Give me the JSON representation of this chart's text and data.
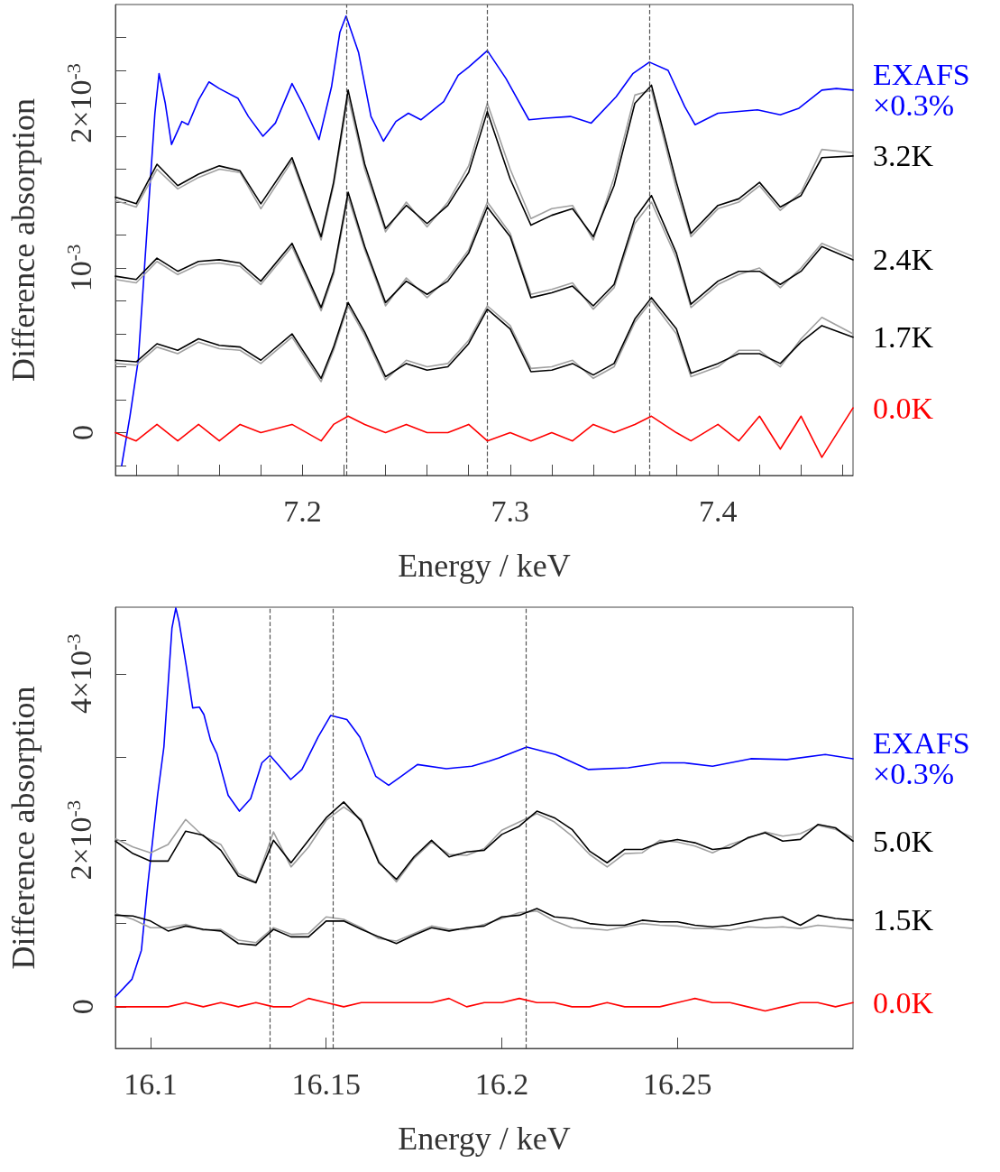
{
  "chart_data": [
    {
      "type": "line",
      "xlabel": "Energy / keV",
      "ylabel": "Difference absorption",
      "grid": false,
      "legend": false,
      "marker": "none",
      "line_style": "solid",
      "xlim": [
        7.11,
        7.465
      ],
      "ylim": [
        -0.00026,
        0.0026
      ],
      "xticks": [
        {
          "value": 7.12,
          "label": null
        },
        {
          "value": 7.14,
          "label": null
        },
        {
          "value": 7.16,
          "label": null
        },
        {
          "value": 7.18,
          "label": null
        },
        7.2,
        {
          "value": 7.22,
          "label": null
        },
        {
          "value": 7.24,
          "label": null
        },
        {
          "value": 7.26,
          "label": null
        },
        {
          "value": 7.28,
          "label": null
        },
        7.3,
        {
          "value": 7.32,
          "label": null
        },
        {
          "value": 7.34,
          "label": null
        },
        {
          "value": 7.36,
          "label": null
        },
        {
          "value": 7.38,
          "label": null
        },
        7.4,
        {
          "value": 7.42,
          "label": null
        },
        {
          "value": 7.44,
          "label": null
        },
        {
          "value": 7.46,
          "label": null
        }
      ],
      "yticks": [
        {
          "value": -0.0002,
          "label": null
        },
        0,
        {
          "value": 0.0002,
          "label": null
        },
        {
          "value": 0.0004,
          "label": null
        },
        {
          "value": 0.0006,
          "label": null
        },
        {
          "value": 0.0008,
          "label": null
        },
        {
          "value": 0.001,
          "label": "10$^{-3}$"
        },
        {
          "value": 0.0012,
          "label": null
        },
        {
          "value": 0.0014,
          "label": null
        },
        {
          "value": 0.0016,
          "label": null
        },
        {
          "value": 0.0018,
          "label": null
        },
        {
          "value": 0.002,
          "label": "2×10$^{-3}$"
        },
        {
          "value": 0.0022,
          "label": null
        },
        {
          "value": 0.0024,
          "label": null
        }
      ],
      "ref_lines": [
        {
          "axis": "x",
          "value": 7.221,
          "color": "#555555",
          "line_style": "dashed"
        },
        {
          "axis": "x",
          "value": 7.289,
          "color": "#555555",
          "line_style": "dashed"
        },
        {
          "axis": "x",
          "value": 7.367,
          "color": "#555555",
          "line_style": "dashed"
        }
      ],
      "x": [
        7.11,
        7.12,
        7.13,
        7.14,
        7.15,
        7.16,
        7.17,
        7.18,
        7.195,
        7.209,
        7.215,
        7.222,
        7.23,
        7.24,
        7.25,
        7.26,
        7.27,
        7.28,
        7.289,
        7.3,
        7.31,
        7.32,
        7.33,
        7.34,
        7.35,
        7.36,
        7.368,
        7.38,
        7.387,
        7.4,
        7.41,
        7.42,
        7.43,
        7.44,
        7.45,
        7.465
      ],
      "series": [
        {
          "name": "EXAFS ×0.3%",
          "color": "#0000ff",
          "x": [
            7.113,
            7.117,
            7.121,
            7.126,
            7.129,
            7.131,
            7.134,
            7.137,
            7.142,
            7.145,
            7.15,
            7.155,
            7.16,
            7.169,
            7.174,
            7.181,
            7.187,
            7.195,
            7.2,
            7.208,
            7.214,
            7.218,
            7.221,
            7.227,
            7.233,
            7.239,
            7.245,
            7.251,
            7.257,
            7.268,
            7.275,
            7.28,
            7.289,
            7.298,
            7.309,
            7.317,
            7.329,
            7.339,
            7.351,
            7.359,
            7.367,
            7.376,
            7.384,
            7.389,
            7.4,
            7.419,
            7.43,
            7.439,
            7.45,
            7.457,
            7.465
          ],
          "values": [
            -0.0002,
            0.0001,
            0.00044,
            0.00138,
            0.00194,
            0.00218,
            0.002,
            0.00175,
            0.00189,
            0.00187,
            0.00202,
            0.00213,
            0.00209,
            0.00203,
            0.00192,
            0.0018,
            0.00188,
            0.00212,
            0.002,
            0.00178,
            0.0021,
            0.00243,
            0.00253,
            0.00231,
            0.00192,
            0.00177,
            0.00189,
            0.00194,
            0.0019,
            0.00201,
            0.00217,
            0.00222,
            0.00232,
            0.00215,
            0.0019,
            0.00191,
            0.00192,
            0.00188,
            0.00204,
            0.00218,
            0.00225,
            0.0022,
            0.00198,
            0.00187,
            0.00194,
            0.00196,
            0.00193,
            0.00197,
            0.00208,
            0.00209,
            0.00208
          ]
        },
        {
          "color": "#a0a0a0",
          "values": [
            0.00141,
            0.00137,
            0.0016,
            0.00148,
            0.00155,
            0.0016,
            0.00158,
            0.00136,
            0.00165,
            0.00117,
            0.0015,
            0.00204,
            0.0016,
            0.00122,
            0.0014,
            0.00125,
            0.0014,
            0.00162,
            0.002,
            0.0016,
            0.0013,
            0.00136,
            0.00138,
            0.00117,
            0.00155,
            0.00205,
            0.00208,
            0.00148,
            0.00119,
            0.00136,
            0.0014,
            0.0015,
            0.00135,
            0.00146,
            0.00172,
            0.0017
          ]
        },
        {
          "color": "#a0a0a0",
          "values": [
            0.00093,
            0.00091,
            0.00104,
            0.00096,
            0.00102,
            0.00103,
            0.00101,
            0.0009,
            0.00113,
            0.00074,
            0.00096,
            0.00143,
            0.00111,
            0.00077,
            0.00094,
            0.00082,
            0.00094,
            0.00111,
            0.0014,
            0.00121,
            0.00084,
            0.00087,
            0.00091,
            0.00075,
            0.00088,
            0.00127,
            0.0014,
            0.00106,
            0.00076,
            0.0009,
            0.00096,
            0.001,
            0.00088,
            0.001,
            0.00115,
            0.00107
          ]
        },
        {
          "color": "#a0a0a0",
          "values": [
            0.00042,
            0.00041,
            0.00052,
            0.00048,
            0.00055,
            0.00051,
            0.0005,
            0.00042,
            0.00058,
            0.00031,
            0.0005,
            0.00077,
            0.00059,
            0.00032,
            0.00044,
            0.0004,
            0.00042,
            0.00056,
            0.00077,
            0.00065,
            0.00039,
            0.0004,
            0.00044,
            0.00033,
            0.0004,
            0.00067,
            0.0008,
            0.0006,
            0.00034,
            0.0004,
            0.0005,
            0.0005,
            0.0004,
            0.00057,
            0.0007,
            0.0006
          ]
        },
        {
          "name": "3.2K",
          "color": "#000000",
          "values": [
            0.00143,
            0.00139,
            0.00163,
            0.0015,
            0.00157,
            0.00162,
            0.00159,
            0.00139,
            0.00167,
            0.00119,
            0.00152,
            0.00208,
            0.00163,
            0.00124,
            0.00138,
            0.00127,
            0.00138,
            0.00158,
            0.00195,
            0.00154,
            0.00126,
            0.00132,
            0.00136,
            0.00119,
            0.0015,
            0.002,
            0.00211,
            0.00152,
            0.00121,
            0.00138,
            0.00142,
            0.00152,
            0.00137,
            0.00144,
            0.00167,
            0.00168
          ]
        },
        {
          "name": "2.4K",
          "color": "#000000",
          "values": [
            0.00095,
            0.00093,
            0.00106,
            0.00098,
            0.00104,
            0.00105,
            0.00103,
            0.00092,
            0.00115,
            0.00076,
            0.00098,
            0.00146,
            0.00113,
            0.00079,
            0.00092,
            0.00084,
            0.00092,
            0.00109,
            0.00137,
            0.00119,
            0.00082,
            0.00085,
            0.00089,
            0.00077,
            0.0009,
            0.0013,
            0.00144,
            0.00109,
            0.00078,
            0.00092,
            0.00098,
            0.00098,
            0.0009,
            0.00098,
            0.00113,
            0.00105
          ]
        },
        {
          "name": "1.7K",
          "color": "#000000",
          "values": [
            0.00044,
            0.00043,
            0.00054,
            0.0005,
            0.00057,
            0.00053,
            0.00052,
            0.00044,
            0.0006,
            0.00033,
            0.00052,
            0.00079,
            0.00061,
            0.00034,
            0.00042,
            0.00038,
            0.0004,
            0.00054,
            0.00075,
            0.00063,
            0.00037,
            0.00038,
            0.00042,
            0.00035,
            0.00042,
            0.00069,
            0.00082,
            0.00063,
            0.00036,
            0.00042,
            0.00048,
            0.00048,
            0.00042,
            0.00055,
            0.00065,
            0.00058
          ]
        },
        {
          "name": "0.0K",
          "color": "#ff0000",
          "values": [
            0,
            -5e-05,
            5e-05,
            -5e-05,
            5e-05,
            -5e-05,
            5e-05,
            0,
            5e-05,
            -5e-05,
            5e-05,
            0.0001,
            5e-05,
            0,
            5e-05,
            0,
            0,
            5e-05,
            -5e-05,
            0,
            -5e-05,
            0,
            -5e-05,
            5e-05,
            0,
            5e-05,
            0.0001,
            0,
            -5e-05,
            5e-05,
            -5e-05,
            0.0001,
            -0.0001,
            0.0001,
            -0.00015,
            0.00015
          ]
        }
      ]
    },
    {
      "type": "line",
      "xlabel": "Energy / keV",
      "ylabel": "Difference absorption",
      "grid": false,
      "legend": false,
      "marker": "none",
      "line_style": "solid",
      "xlim": [
        16.09,
        16.3
      ],
      "ylim": [
        -0.0005,
        0.0048
      ],
      "xticks": [
        16.1,
        16.15,
        16.2,
        16.25
      ],
      "yticks": [
        0,
        {
          "value": 0.001,
          "label": null
        },
        {
          "value": 0.002,
          "label": "2×10$^{-3}$"
        },
        {
          "value": 0.003,
          "label": null
        },
        {
          "value": 0.004,
          "label": "4×10$^{-3}$"
        }
      ],
      "ref_lines": [
        {
          "axis": "x",
          "value": 16.134,
          "color": "#555555",
          "line_style": "dashed"
        },
        {
          "axis": "x",
          "value": 16.152,
          "color": "#555555",
          "line_style": "dashed"
        },
        {
          "axis": "x",
          "value": 16.207,
          "color": "#555555",
          "line_style": "dashed"
        }
      ],
      "x": [
        16.09,
        16.095,
        16.1,
        16.105,
        16.11,
        16.115,
        16.12,
        16.125,
        16.13,
        16.135,
        16.14,
        16.145,
        16.15,
        16.155,
        16.16,
        16.165,
        16.17,
        16.175,
        16.18,
        16.185,
        16.19,
        16.195,
        16.2,
        16.205,
        16.21,
        16.215,
        16.22,
        16.225,
        16.23,
        16.235,
        16.24,
        16.245,
        16.25,
        16.255,
        16.26,
        16.265,
        16.27,
        16.275,
        16.28,
        16.285,
        16.29,
        16.295,
        16.3
      ],
      "series": [
        {
          "name": "EXAFS ×0.3%",
          "color": "#0000ff",
          "x": [
            16.09,
            16.0947,
            16.0974,
            16.0992,
            16.102,
            16.1038,
            16.1061,
            16.1072,
            16.1081,
            16.1102,
            16.112,
            16.1139,
            16.1152,
            16.1171,
            16.1189,
            16.1221,
            16.1253,
            16.1285,
            16.1317,
            16.134,
            16.1367,
            16.1399,
            16.1431,
            16.1477,
            16.1513,
            16.1559,
            16.1596,
            16.1641,
            16.1678,
            16.1714,
            16.176,
            16.1842,
            16.1915,
            16.1963,
            16.1992,
            16.2071,
            16.2153,
            16.2247,
            16.236,
            16.2455,
            16.252,
            16.26,
            16.2709,
            16.2812,
            16.2921,
            16.3
          ],
          "values": [
            0.00012,
            0.00033,
            0.00068,
            0.00146,
            0.00254,
            0.00312,
            0.00455,
            0.00479,
            0.00463,
            0.00409,
            0.00359,
            0.0036,
            0.00351,
            0.0032,
            0.00304,
            0.00254,
            0.00235,
            0.0025,
            0.00293,
            0.00302,
            0.00289,
            0.00273,
            0.00285,
            0.00324,
            0.0035,
            0.00345,
            0.00324,
            0.00277,
            0.00266,
            0.00277,
            0.00291,
            0.00286,
            0.00289,
            0.00295,
            0.00299,
            0.00312,
            0.00303,
            0.00285,
            0.00287,
            0.00293,
            0.00293,
            0.00289,
            0.00298,
            0.00297,
            0.00303,
            0.00298
          ]
        },
        {
          "color": "#a0a0a0",
          "values": [
            0.00202,
            0.00192,
            0.00185,
            0.00195,
            0.00225,
            0.00205,
            0.00195,
            0.0016,
            0.0015,
            0.0021,
            0.00168,
            0.00192,
            0.00224,
            0.0024,
            0.00225,
            0.00175,
            0.0015,
            0.00178,
            0.00198,
            0.00183,
            0.00182,
            0.0019,
            0.00212,
            0.00222,
            0.00232,
            0.00222,
            0.00205,
            0.00183,
            0.00168,
            0.00184,
            0.00185,
            0.002,
            0.00198,
            0.00193,
            0.00185,
            0.00195,
            0.00202,
            0.0021,
            0.00205,
            0.00208,
            0.00218,
            0.00213,
            0.00203
          ]
        },
        {
          "color": "#a0a0a0",
          "values": [
            0.00112,
            0.00105,
            0.00095,
            0.00095,
            0.00099,
            0.00092,
            0.00093,
            0.0008,
            0.00077,
            0.00095,
            0.00087,
            0.00088,
            0.00108,
            0.00105,
            0.00095,
            0.00082,
            0.00079,
            0.00088,
            0.00097,
            0.00093,
            0.00093,
            0.00099,
            0.00106,
            0.00113,
            0.00115,
            0.00103,
            0.00095,
            0.00094,
            0.00092,
            0.00096,
            0.001,
            0.00098,
            0.00097,
            0.00094,
            0.00094,
            0.00092,
            0.00096,
            0.00095,
            0.00096,
            0.00094,
            0.00098,
            0.00096,
            0.00094
          ]
        },
        {
          "name": "5.0K",
          "color": "#000000",
          "values": [
            0.00199,
            0.00184,
            0.00175,
            0.00175,
            0.00211,
            0.00206,
            0.00188,
            0.00157,
            0.00149,
            0.002,
            0.00173,
            0.002,
            0.00227,
            0.00246,
            0.00223,
            0.00173,
            0.00153,
            0.0018,
            0.002,
            0.0018,
            0.00186,
            0.00188,
            0.00207,
            0.00217,
            0.00235,
            0.00227,
            0.00213,
            0.00187,
            0.00173,
            0.00189,
            0.00189,
            0.00197,
            0.00201,
            0.00197,
            0.00189,
            0.00191,
            0.00203,
            0.00209,
            0.00199,
            0.00201,
            0.00219,
            0.00215,
            0.00199
          ]
        },
        {
          "name": "1.5K",
          "color": "#000000",
          "values": [
            0.0011,
            0.00109,
            0.00103,
            0.00091,
            0.00097,
            0.00093,
            0.00091,
            0.00076,
            0.00074,
            0.00093,
            0.00084,
            0.00084,
            0.00103,
            0.00103,
            0.00093,
            0.00084,
            0.00076,
            0.00086,
            0.00095,
            0.00091,
            0.00095,
            0.00097,
            0.00108,
            0.0011,
            0.00118,
            0.00108,
            0.00106,
            0.001,
            0.00098,
            0.00098,
            0.00104,
            0.00102,
            0.00102,
            0.00098,
            0.00096,
            0.00098,
            0.00102,
            0.00106,
            0.00108,
            0.00098,
            0.0011,
            0.00106,
            0.00104
          ]
        },
        {
          "name": "0.0K",
          "color": "#ff0000",
          "values": [
            0,
            0,
            0,
            0,
            5e-05,
            0,
            5e-05,
            0,
            5e-05,
            0,
            0,
            0.0001,
            5e-05,
            0,
            5e-05,
            5e-05,
            5e-05,
            5e-05,
            5e-05,
            0.0001,
            0,
            5e-05,
            5e-05,
            0.0001,
            5e-05,
            5e-05,
            0,
            0,
            5e-05,
            0,
            0,
            0,
            5e-05,
            0.0001,
            5e-05,
            5e-05,
            0,
            -5e-05,
            0,
            5e-05,
            5e-05,
            0,
            5e-05
          ]
        }
      ]
    }
  ]
}
